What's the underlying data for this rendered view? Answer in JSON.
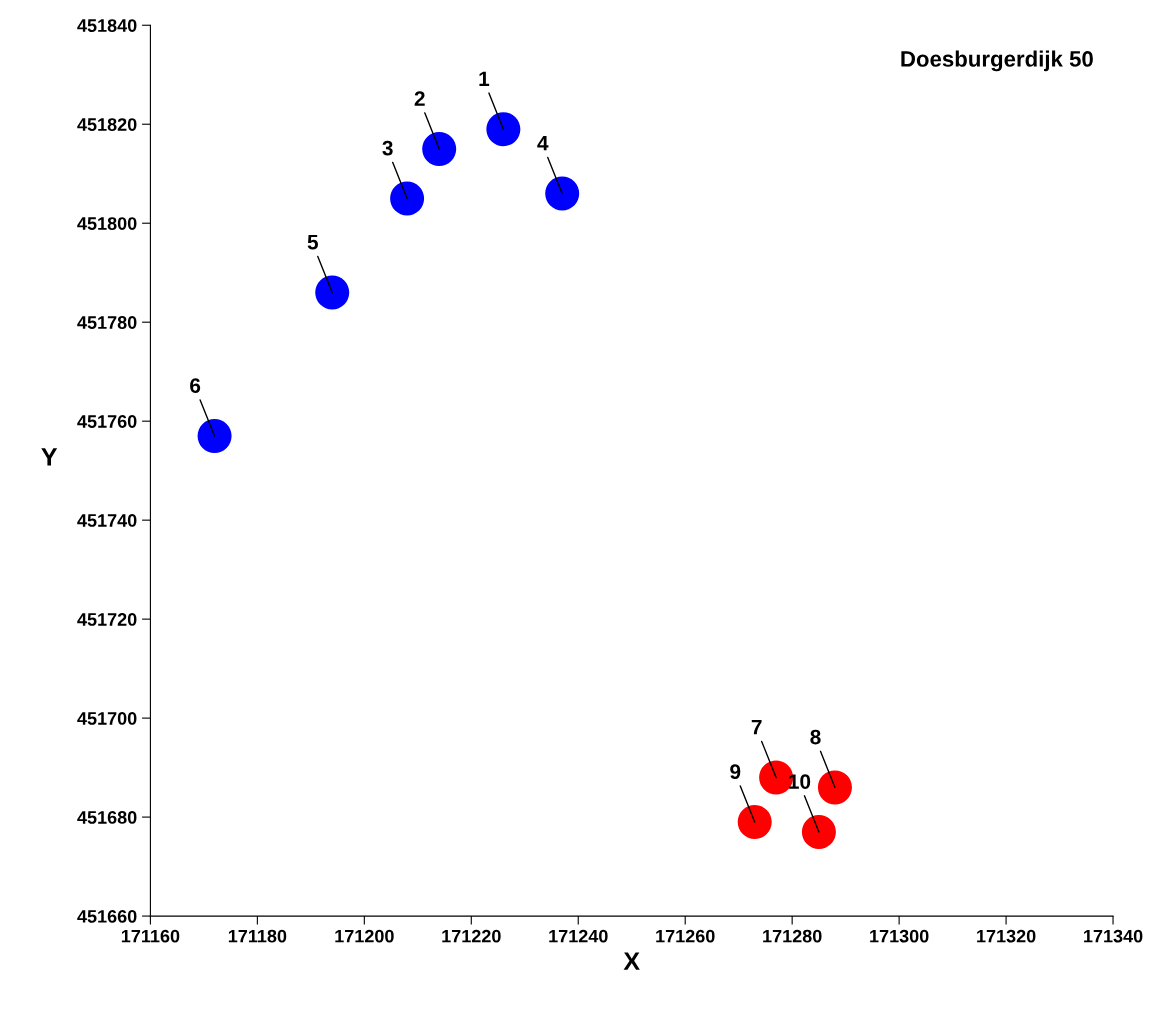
{
  "chart_data": {
    "type": "scatter",
    "title": "Doesburgerdijk 50",
    "xlabel": "X",
    "ylabel": "Y",
    "series": [
      {
        "color": "#0000ff",
        "x": [
          171226,
          171214,
          171208,
          171237,
          171194,
          171172
        ],
        "values": [
          451819,
          451815,
          451805,
          451806,
          451786,
          451757
        ]
      },
      {
        "color": "#ff0000",
        "x": [
          171277,
          171288,
          171273,
          171285
        ],
        "values": [
          451688,
          451686,
          451679,
          451677
        ]
      }
    ],
    "annotations": [
      {
        "text": "1",
        "x": 171226,
        "y": 451819
      },
      {
        "text": "2",
        "x": 171214,
        "y": 451815
      },
      {
        "text": "3",
        "x": 171208,
        "y": 451805
      },
      {
        "text": "4",
        "x": 171237,
        "y": 451806
      },
      {
        "text": "5",
        "x": 171194,
        "y": 451786
      },
      {
        "text": "6",
        "x": 171172,
        "y": 451757
      },
      {
        "text": "7",
        "x": 171277,
        "y": 451688
      },
      {
        "text": "8",
        "x": 171288,
        "y": 451686
      },
      {
        "text": "9",
        "x": 171273,
        "y": 451679
      },
      {
        "text": "10",
        "x": 171285,
        "y": 451677
      }
    ],
    "xlim": [
      171160,
      171340
    ],
    "ylim": [
      451660,
      451840
    ],
    "xticks": [
      171160,
      171180,
      171200,
      171220,
      171240,
      171260,
      171280,
      171300,
      171320,
      171340
    ],
    "yticks": [
      451660,
      451680,
      451700,
      451720,
      451740,
      451760,
      451780,
      451800,
      451820,
      451840
    ],
    "marker": "circle",
    "grid": false,
    "legend": false
  }
}
